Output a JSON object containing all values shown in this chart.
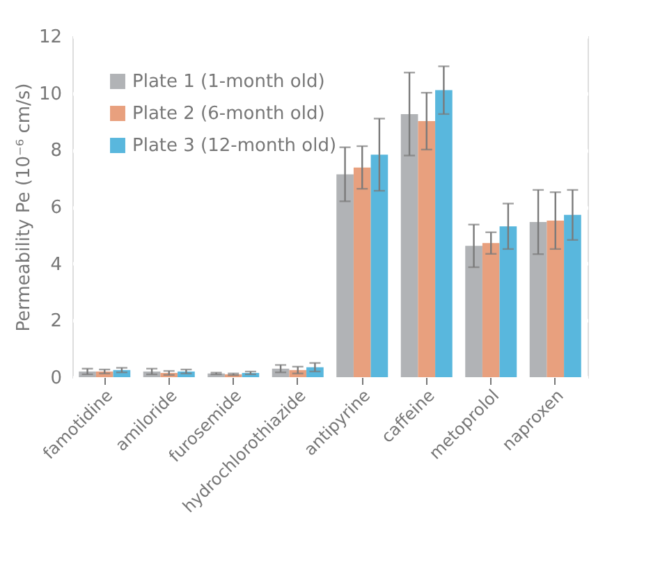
{
  "chart_data": {
    "type": "bar",
    "ylabel": "Permeability Pe (10⁻⁶ cm/s)",
    "categories": [
      "famotidine",
      "amiloride",
      "furosemide",
      "hydrochlorothiazide",
      "antipyrine",
      "caffeine",
      "metoprolol",
      "naproxen"
    ],
    "series": [
      {
        "name": "Plate 1 (1-month old)",
        "color": "#b1b3b6",
        "values": [
          0.2,
          0.2,
          0.13,
          0.3,
          7.14,
          9.26,
          4.62,
          5.46
        ],
        "errors": [
          0.1,
          0.1,
          0.03,
          0.13,
          0.95,
          1.46,
          0.75,
          1.13
        ]
      },
      {
        "name": "Plate 2 (6-month old)",
        "color": "#e8a07e",
        "values": [
          0.2,
          0.15,
          0.1,
          0.25,
          7.38,
          9.01,
          4.72,
          5.51
        ],
        "errors": [
          0.07,
          0.07,
          0.03,
          0.12,
          0.75,
          1.0,
          0.38,
          1.0
        ]
      },
      {
        "name": "Plate 3 (12-month old)",
        "color": "#59b7dd",
        "values": [
          0.25,
          0.2,
          0.15,
          0.35,
          7.83,
          10.1,
          5.31,
          5.71
        ],
        "errors": [
          0.08,
          0.07,
          0.05,
          0.15,
          1.27,
          0.84,
          0.8,
          0.88
        ]
      }
    ],
    "ylim": [
      0,
      12
    ],
    "yticks": [
      0,
      2,
      4,
      6,
      8,
      10,
      12
    ],
    "grid": "y",
    "legend": "top left"
  }
}
